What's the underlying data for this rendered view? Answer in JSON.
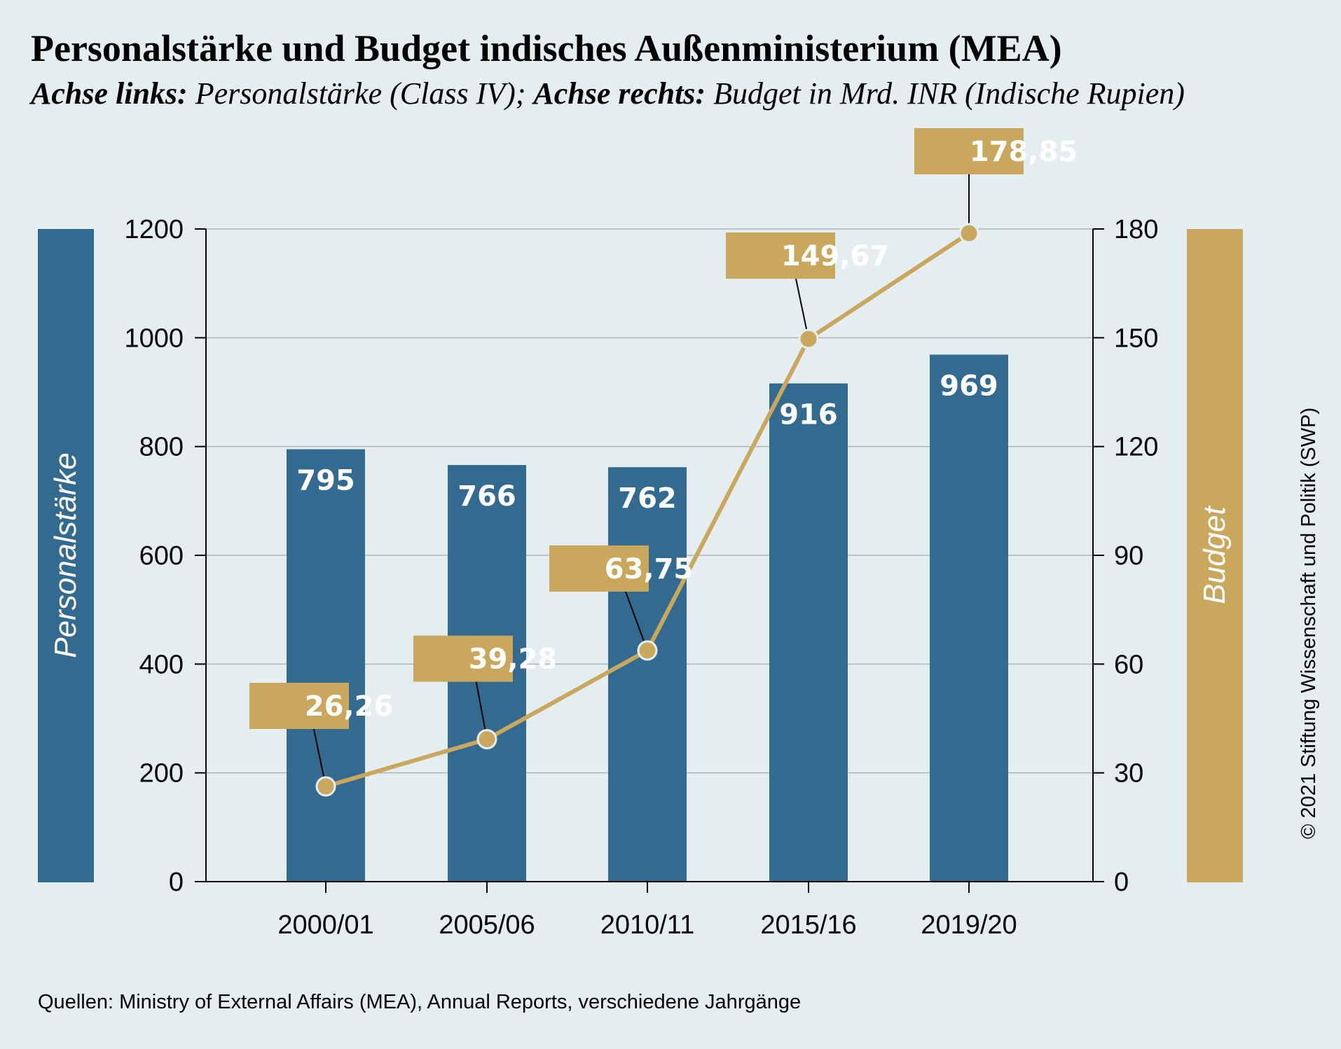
{
  "title": "Personalstärke und Budget indisches Außenministerium (MEA)",
  "subtitle": {
    "left_bold": "Achse links:",
    "left_text": " Personalstärke (Class IV); ",
    "right_bold": "Achse rechts:",
    "right_text": " Budget in Mrd. INR (Indische Rupien)"
  },
  "source": "Quellen: Ministry of External Affairs (MEA), Annual Reports, verschiedene Jahrgänge",
  "copyright": "© 2021 Stiftung Wissenschaft und Politik (SWP)",
  "colors": {
    "background": "#e4eef0",
    "bar": "#336a8f",
    "line": "#c9a85d",
    "label_box": "#c9a85d"
  },
  "chart_data": {
    "type": "bar",
    "categories": [
      "2000/01",
      "2005/06",
      "2010/11",
      "2015/16",
      "2019/20"
    ],
    "series": [
      {
        "name": "Personalstärke",
        "type": "bar",
        "axis": "left",
        "values": [
          795,
          766,
          762,
          916,
          969
        ],
        "labels": [
          "795",
          "766",
          "762",
          "916",
          "969"
        ]
      },
      {
        "name": "Budget",
        "type": "line",
        "axis": "right",
        "values": [
          26.26,
          39.28,
          63.75,
          149.67,
          178.85
        ],
        "labels": [
          "26,26",
          "39,28",
          "63,75",
          "149,67",
          "178,85"
        ]
      }
    ],
    "y_left": {
      "label": "Personalstärke",
      "lim": [
        0,
        1200
      ],
      "ticks": [
        0,
        200,
        400,
        600,
        800,
        1000,
        1200
      ],
      "tick_labels": [
        "0",
        "200",
        "400",
        "600",
        "800",
        "1000",
        "1200"
      ]
    },
    "y_right": {
      "label": "Budget",
      "lim": [
        0,
        180
      ],
      "ticks": [
        0,
        30,
        60,
        90,
        120,
        150,
        180
      ],
      "tick_labels": [
        "0",
        "30",
        "60",
        "90",
        "120",
        "150",
        "180"
      ]
    },
    "grid": true,
    "legend": "none"
  }
}
